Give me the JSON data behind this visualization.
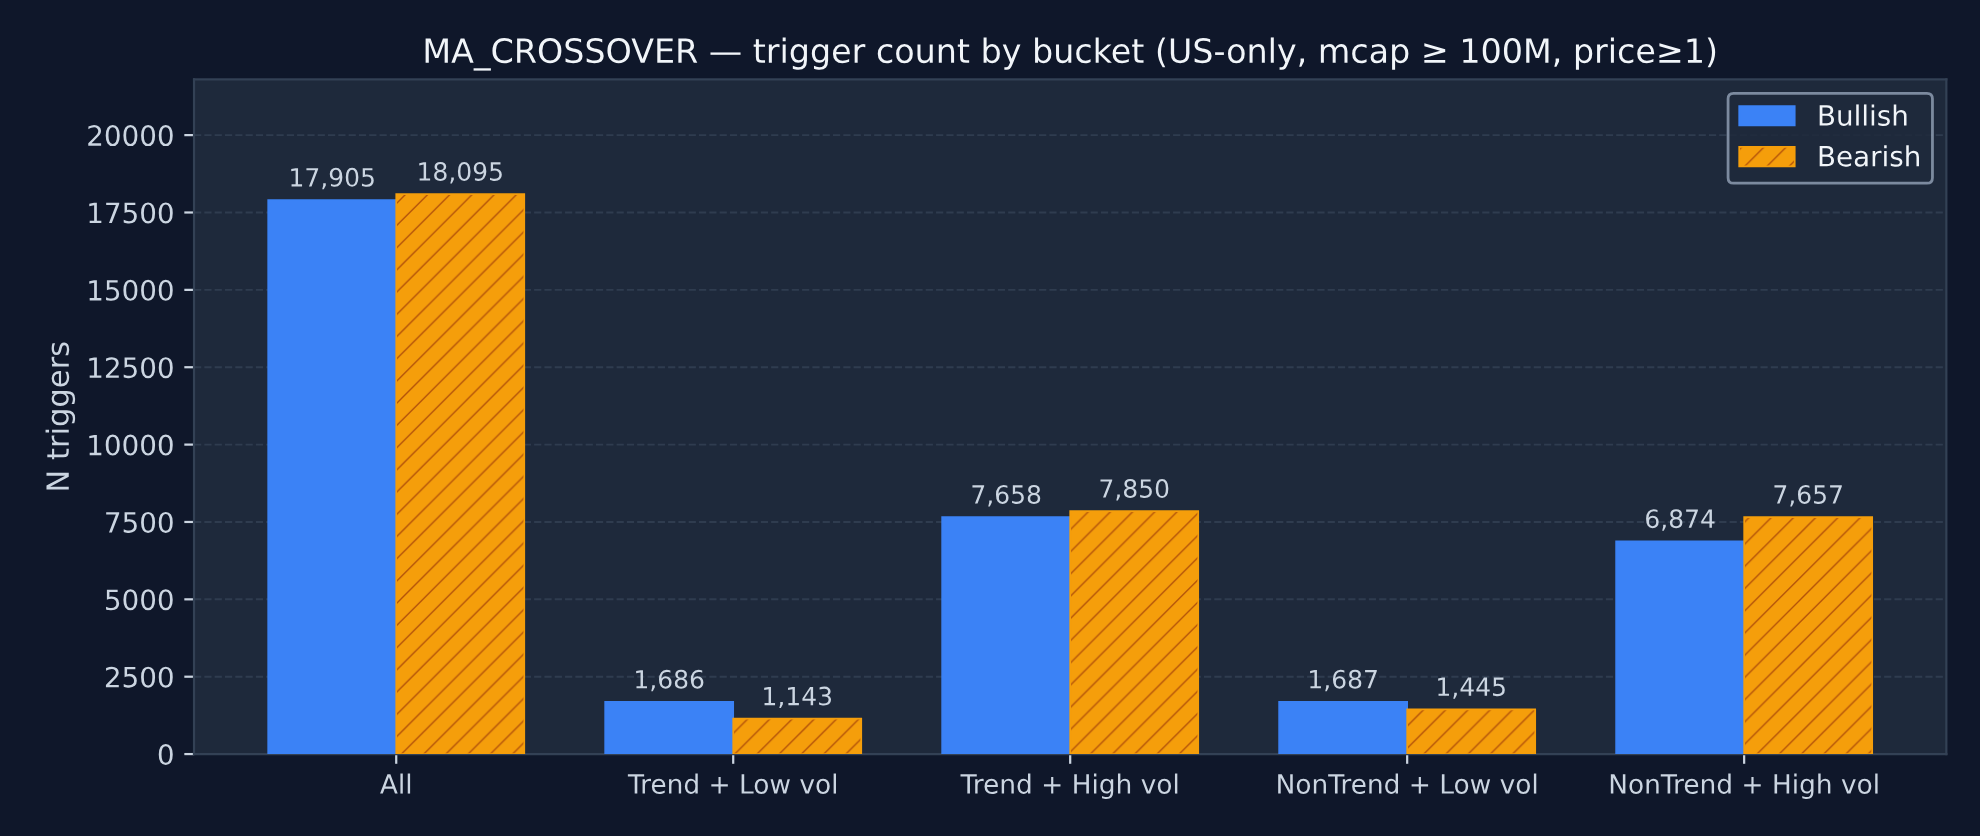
{
  "chart_data": {
    "type": "bar",
    "title": "MA_CROSSOVER — trigger count by bucket (US-only, mcap ≥ 100M, price≥1)",
    "ylabel": "N triggers",
    "categories": [
      "All",
      "Trend + Low vol",
      "Trend + High vol",
      "NonTrend + Low vol",
      "NonTrend + High vol"
    ],
    "series": [
      {
        "name": "Bullish",
        "color": "#3b82f6",
        "values": [
          17905,
          1686,
          7658,
          1687,
          6874
        ],
        "value_labels": [
          "17,905",
          "1,686",
          "7,658",
          "1,687",
          "6,874"
        ]
      },
      {
        "name": "Bearish",
        "color": "#f59e0b",
        "values": [
          18095,
          1143,
          7850,
          1445,
          7657
        ],
        "value_labels": [
          "18,095",
          "1,143",
          "7,850",
          "1,445",
          "7,657"
        ]
      }
    ],
    "ylim": [
      0,
      21800
    ],
    "yticks": [
      0,
      2500,
      5000,
      7500,
      10000,
      12500,
      15000,
      17500,
      20000
    ],
    "grid": "y",
    "legend": "top right"
  }
}
